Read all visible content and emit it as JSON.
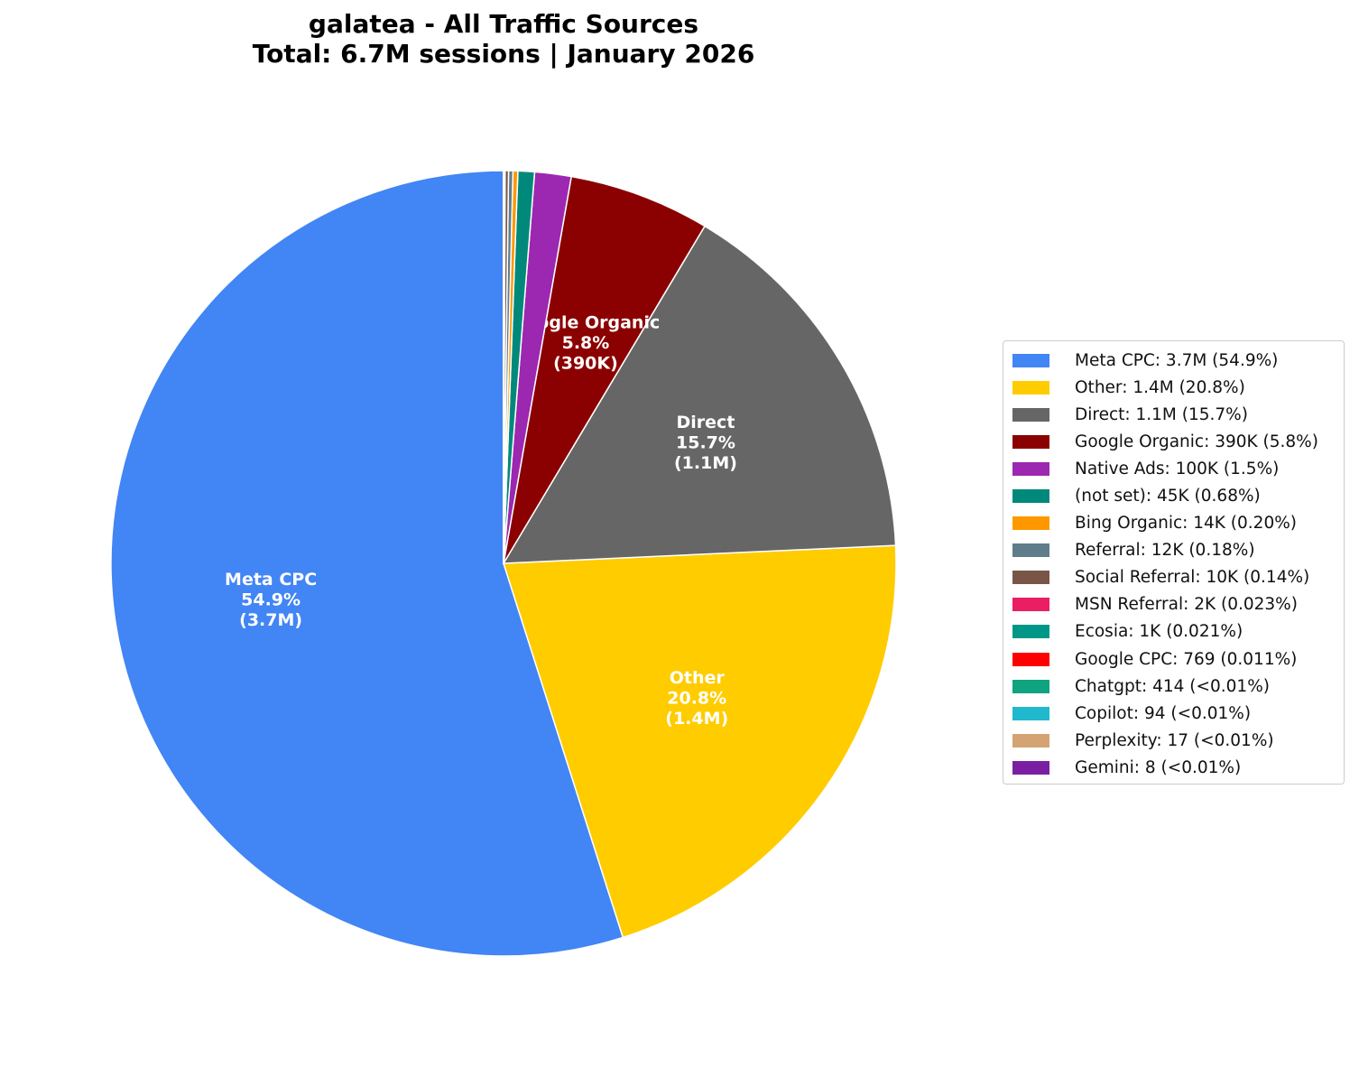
{
  "chart_data": {
    "type": "pie",
    "title": "galatea - All Traffic Sources",
    "subtitle": "Total: 6.7M sessions | January 2026",
    "start_angle_deg": 90,
    "direction": "counterclockwise",
    "legend_placement": "right",
    "slices": [
      {
        "name": "Meta CPC",
        "value": 3700000,
        "percent": 54.9,
        "color": "#4285F4",
        "legend": "Meta CPC: 3.7M (54.9%)",
        "label": [
          "Meta CPC",
          "54.9%",
          "(3.7M)"
        ]
      },
      {
        "name": "Other",
        "value": 1400000,
        "percent": 20.8,
        "color": "#FFCC00",
        "legend": "Other: 1.4M (20.8%)",
        "label": [
          "Other",
          "20.8%",
          "(1.4M)"
        ]
      },
      {
        "name": "Direct",
        "value": 1100000,
        "percent": 15.7,
        "color": "#666666",
        "legend": "Direct: 1.1M (15.7%)",
        "label": [
          "Direct",
          "15.7%",
          "(1.1M)"
        ]
      },
      {
        "name": "Google Organic",
        "value": 390000,
        "percent": 5.8,
        "color": "#8B0000",
        "legend": "Google Organic: 390K (5.8%)",
        "label": [
          "Google Organic",
          "5.8%",
          "(390K)"
        ]
      },
      {
        "name": "Native Ads",
        "value": 100000,
        "percent": 1.5,
        "color": "#9C27B0",
        "legend": "Native Ads: 100K (1.5%)"
      },
      {
        "name": "(not set)",
        "value": 45000,
        "percent": 0.68,
        "color": "#00897B",
        "legend": "(not set): 45K (0.68%)"
      },
      {
        "name": "Bing Organic",
        "value": 14000,
        "percent": 0.2,
        "color": "#FF9800",
        "legend": "Bing Organic: 14K (0.20%)"
      },
      {
        "name": "Referral",
        "value": 12000,
        "percent": 0.18,
        "color": "#607D8B",
        "legend": "Referral: 12K (0.18%)"
      },
      {
        "name": "Social Referral",
        "value": 10000,
        "percent": 0.14,
        "color": "#795548",
        "legend": "Social Referral: 10K (0.14%)"
      },
      {
        "name": "MSN Referral",
        "value": 2000,
        "percent": 0.023,
        "color": "#E91E63",
        "legend": "MSN Referral: 2K (0.023%)"
      },
      {
        "name": "Ecosia",
        "value": 1000,
        "percent": 0.021,
        "color": "#009688",
        "legend": "Ecosia: 1K (0.021%)"
      },
      {
        "name": "Google CPC",
        "value": 769,
        "percent": 0.011,
        "color": "#FF0000",
        "legend": "Google CPC: 769 (0.011%)"
      },
      {
        "name": "Chatgpt",
        "value": 414,
        "percent": 0.006,
        "color": "#10A37F",
        "legend": "Chatgpt: 414 (<0.01%)"
      },
      {
        "name": "Copilot",
        "value": 94,
        "percent": 0.0014,
        "color": "#1FB8CD",
        "legend": "Copilot: 94 (<0.01%)"
      },
      {
        "name": "Perplexity",
        "value": 17,
        "percent": 0.00025,
        "color": "#D4A373",
        "legend": "Perplexity: 17 (<0.01%)"
      },
      {
        "name": "Gemini",
        "value": 8,
        "percent": 0.00012,
        "color": "#7B1FA2",
        "legend": "Gemini: 8 (<0.01%)"
      }
    ]
  }
}
